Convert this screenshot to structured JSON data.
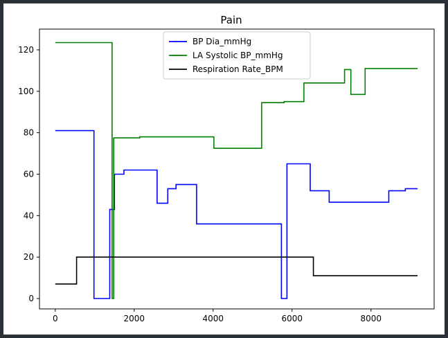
{
  "chart_data": {
    "type": "line",
    "title": "Pain",
    "xlabel": "",
    "ylabel": "",
    "xlim": [
      -400,
      9600
    ],
    "ylim": [
      -5,
      130
    ],
    "xticks": [
      0,
      2000,
      4000,
      6000,
      8000
    ],
    "yticks": [
      0,
      20,
      40,
      60,
      80,
      100,
      120
    ],
    "grid": false,
    "legend_position": "top-center",
    "step": true,
    "series": [
      {
        "name": "BP Dia_mmHg",
        "color": "#0000ff",
        "x": [
          0,
          980,
          1380,
          1420,
          1500,
          1740,
          2580,
          2850,
          3060,
          3580,
          5730,
          5870,
          6460,
          6940,
          8450,
          8870,
          9180
        ],
        "y": [
          81,
          0,
          43,
          43,
          60,
          62,
          46,
          53,
          55,
          36,
          0,
          65,
          52,
          46.5,
          52,
          53,
          53
        ]
      },
      {
        "name": "LA Systolic BP_mmHg",
        "color": "#008000",
        "x": [
          0,
          1440,
          1460,
          1480,
          2140,
          4020,
          5230,
          5800,
          6300,
          7330,
          7490,
          7850,
          9180
        ],
        "y": [
          123.5,
          0,
          0,
          77.5,
          78,
          72.5,
          94.5,
          95,
          104,
          110.5,
          98.5,
          111,
          111
        ]
      },
      {
        "name": "Respiration Rate_BPM",
        "color": "#000000",
        "x": [
          0,
          540,
          6540,
          9180
        ],
        "y": [
          7,
          20,
          11,
          11
        ]
      }
    ]
  }
}
